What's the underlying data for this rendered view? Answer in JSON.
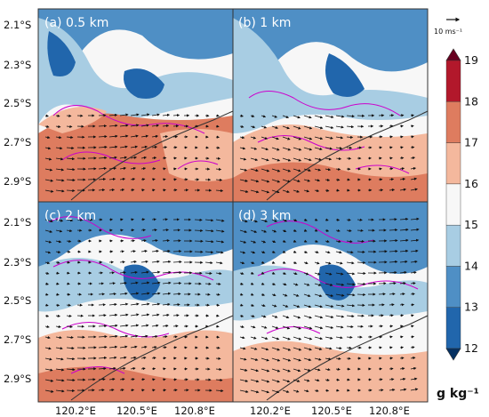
{
  "panels": [
    {
      "title": "(a) 0.5 km"
    },
    {
      "title": "(b) 1 km"
    },
    {
      "title": "(c) 2 km"
    },
    {
      "title": "(d) 3 km"
    }
  ],
  "y_ticks": [
    "2.1°S",
    "2.3°S",
    "2.5°S",
    "2.7°S",
    "2.9°S"
  ],
  "x_ticks": [
    "120.2°E",
    "120.5°E",
    "120.8°E"
  ],
  "colorbar": {
    "levels": [
      "12",
      "13",
      "14",
      "15",
      "16",
      "17",
      "18",
      "19"
    ],
    "unit": "g kg⁻¹",
    "colors": [
      "#2166ac",
      "#4f8fc5",
      "#a8cde3",
      "#f7f7f7",
      "#f4b89d",
      "#de7c5f",
      "#b2182b"
    ],
    "under_color": "#053061",
    "over_color": "#67001f"
  },
  "reference_vector": {
    "label": "10 ms⁻¹"
  },
  "colors": {
    "contour": "#cc00cc",
    "vector": "#111111",
    "coastline": "#333333"
  }
}
